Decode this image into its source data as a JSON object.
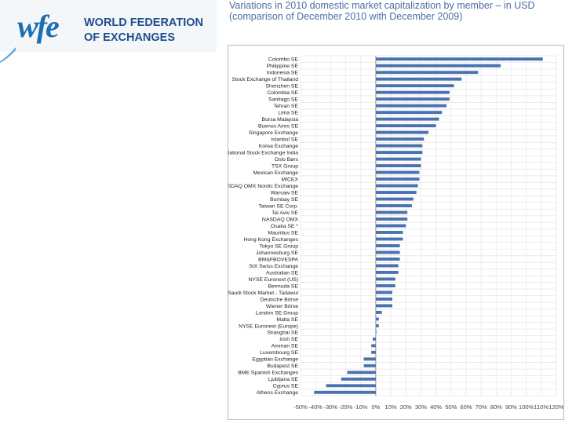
{
  "logo": {
    "mark": "wfe",
    "line1": "WORLD FEDERATION",
    "line2": "OF EXCHANGES"
  },
  "header": {
    "title_line1": "Variations in 2010 domestic market capitalization by member – in USD",
    "title_line2": "(comparison of December 2010 with December 2009)"
  },
  "colors": {
    "bar": "#4a72b0",
    "brand": "#1f4e8c",
    "title": "#4f6ea3"
  },
  "chart_data": {
    "type": "bar",
    "orientation": "horizontal",
    "title": "Variations in 2010 domestic market capitalization by member – in USD (comparison of December 2010 with December 2009)",
    "xlabel": "",
    "ylabel": "",
    "xlim": [
      -50,
      120
    ],
    "grid": true,
    "ticks": [
      "-50%",
      "-40%",
      "-30%",
      "-20%",
      "-10%",
      "0%",
      "10%",
      "20%",
      "30%",
      "40%",
      "50%",
      "60%",
      "70%",
      "80%",
      "90%",
      "100%",
      "110%",
      "120%"
    ],
    "tick_values": [
      -50,
      -40,
      -30,
      -20,
      -10,
      0,
      10,
      20,
      30,
      40,
      50,
      60,
      70,
      80,
      90,
      100,
      110,
      120
    ],
    "categories": [
      "Colombo SE",
      "Philippine SE",
      "Indonesia SE",
      "Stock Exchange of Thailand",
      "Shenzhen SE",
      "Colombia SE",
      "Santiago SE",
      "Tehran SE",
      "Lima SE",
      "Bursa Malaysia",
      "Buenos Aires SE",
      "Singapore Exchange",
      "Istanbul SE",
      "Korea Exchange",
      "National Stock Exchange India",
      "Oslo Børs",
      "TSX Group",
      "Mexican Exchange",
      "MICEX",
      "NASDAQ OMX Nordic Exchange",
      "Warsaw SE",
      "Bombay SE",
      "Taiwan SE Corp.",
      "Tel Aviv SE",
      "NASDAQ OMX",
      "Osaka SE *",
      "Mauritius SE",
      "Hong Kong Exchanges",
      "Tokyo SE Group",
      "Johannesburg SE",
      "BM&FBOVESPA",
      "SIX Swiss Exchange",
      "Australian SE",
      "NYSE Euronext (US)",
      "Bermuda SE",
      "Saudi Stock Market - Tadawul",
      "Deutsche Börse",
      "Wiener Börse",
      "London SE Group",
      "Malta SE",
      "NYSE Euronext (Europe)",
      "Shanghai SE",
      "Irish SE",
      "Amman SE",
      "Luxembourg SE",
      "Egyptian Exchange",
      "Budapest SE",
      "BME Spanish Exchanges",
      "Ljubljana SE",
      "Cyprus SE",
      "Athens Exchange"
    ],
    "values": [
      111,
      83,
      68,
      57,
      52,
      49,
      49,
      47,
      44,
      42,
      40,
      35,
      32,
      31,
      31,
      30,
      30,
      29,
      29,
      28,
      27,
      25,
      24,
      21,
      21,
      20,
      18,
      18,
      16,
      16,
      16,
      15,
      15,
      13,
      13,
      11,
      11,
      11,
      4,
      2,
      2,
      0,
      -2,
      -3,
      -3,
      -8,
      -8,
      -19,
      -23,
      -33,
      -41
    ]
  }
}
